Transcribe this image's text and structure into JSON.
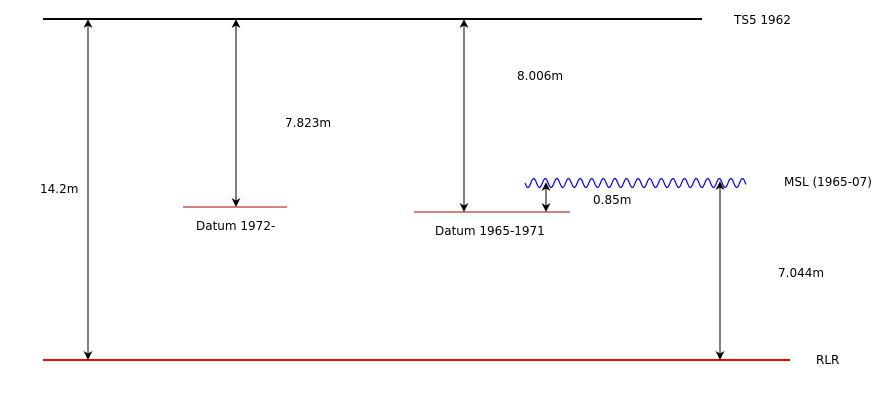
{
  "diagram": {
    "labels": {
      "ts5": "TS5 1962",
      "msl": "MSL (1965-07)",
      "rlr": "RLR",
      "datum_1972": "Datum 1972-",
      "datum_1965": "Datum 1965-1971"
    },
    "measurements": {
      "ts5_to_rlr": "14.2m",
      "ts5_to_datum_1972": "7.823m",
      "ts5_to_datum_1965": "8.006m",
      "datum_1965_to_msl": "0.85m",
      "msl_to_rlr": "7.044m"
    },
    "colors": {
      "ts5_line": "#000000",
      "rlr_line": "#ff0000",
      "datum_lines": "#b00000",
      "msl_wave": "#0000ff",
      "arrows": "#000000"
    }
  }
}
